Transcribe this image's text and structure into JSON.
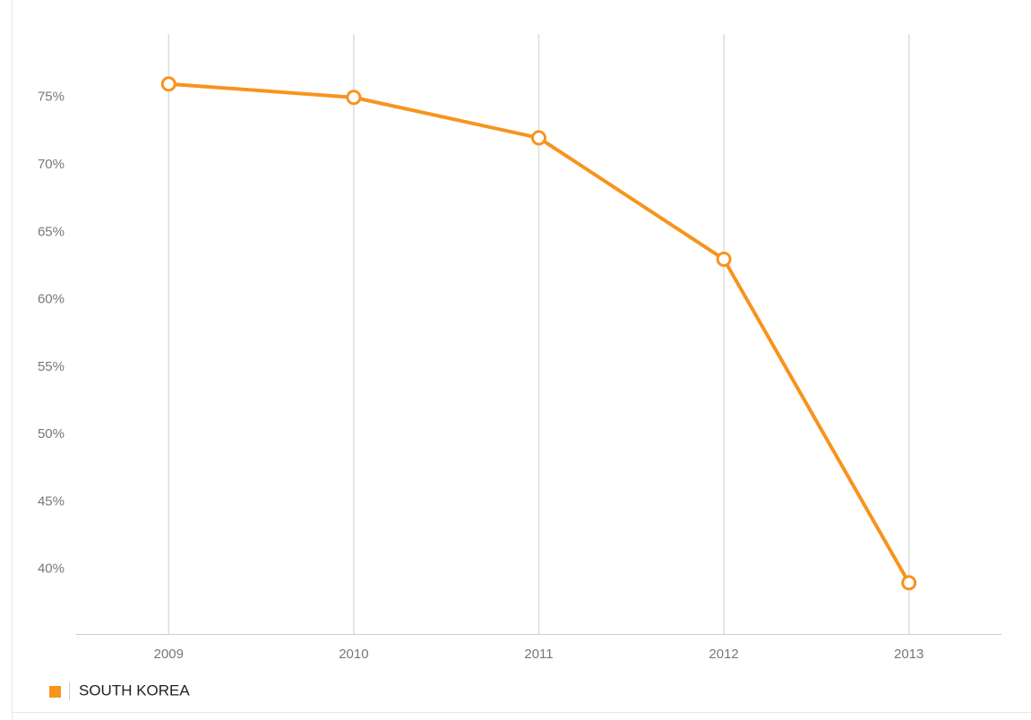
{
  "chart_data": {
    "type": "line",
    "categories": [
      "2009",
      "2010",
      "2011",
      "2012",
      "2013"
    ],
    "series": [
      {
        "name": "SOUTH KOREA",
        "color": "#f7941d",
        "values": [
          76,
          75,
          72,
          63,
          39
        ]
      }
    ],
    "ylim": [
      35.2,
      79.7
    ],
    "yticks": [
      {
        "value": 40,
        "label": "40%"
      },
      {
        "value": 45,
        "label": "45%"
      },
      {
        "value": 50,
        "label": "50%"
      },
      {
        "value": 55,
        "label": "55%"
      },
      {
        "value": 60,
        "label": "60%"
      },
      {
        "value": 65,
        "label": "65%"
      },
      {
        "value": 70,
        "label": "70%"
      },
      {
        "value": 75,
        "label": "75%"
      }
    ],
    "grid": "x"
  }
}
